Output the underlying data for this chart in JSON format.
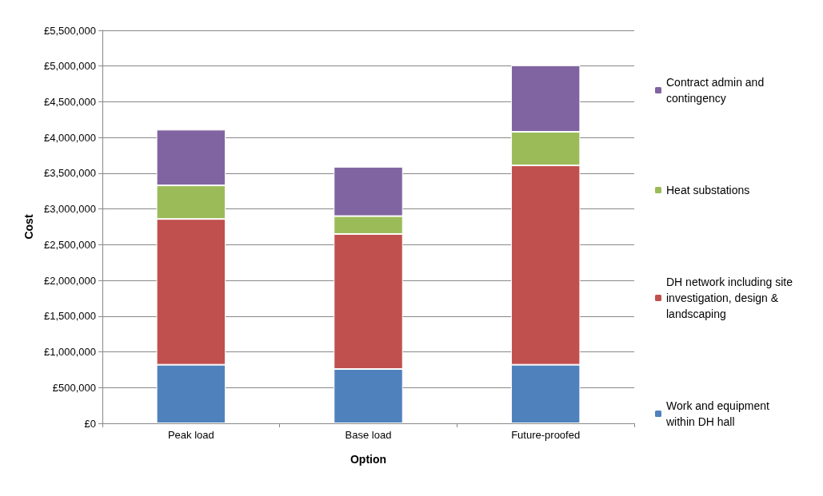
{
  "chart_data": {
    "type": "bar",
    "stacked": true,
    "xlabel": "Option",
    "ylabel": "Cost",
    "categories": [
      "Peak load",
      "Base load",
      "Future-proofed"
    ],
    "series": [
      {
        "name": "Work and equipment within DH hall",
        "color": "#4f81bd",
        "values": [
          820000,
          760000,
          820000
        ]
      },
      {
        "name": "DH network including site investigation, design & landscaping",
        "color": "#c0504d",
        "values": [
          2040000,
          1890000,
          2790000
        ]
      },
      {
        "name": "Heat substations",
        "color": "#9bbb59",
        "values": [
          470000,
          250000,
          470000
        ]
      },
      {
        "name": "Contract admin and contingency",
        "color": "#8064a2",
        "values": [
          780000,
          690000,
          930000
        ]
      }
    ],
    "ylim": [
      0,
      5500000
    ],
    "yticks": [
      {
        "value": 0,
        "label": "£0"
      },
      {
        "value": 500000,
        "label": "£500,000"
      },
      {
        "value": 1000000,
        "label": "£1,000,000"
      },
      {
        "value": 1500000,
        "label": "£1,500,000"
      },
      {
        "value": 2000000,
        "label": "£2,000,000"
      },
      {
        "value": 2500000,
        "label": "£2,500,000"
      },
      {
        "value": 3000000,
        "label": "£3,000,000"
      },
      {
        "value": 3500000,
        "label": "£3,500,000"
      },
      {
        "value": 4000000,
        "label": "£4,000,000"
      },
      {
        "value": 4500000,
        "label": "£4,500,000"
      },
      {
        "value": 5000000,
        "label": "£5,000,000"
      },
      {
        "value": 5500000,
        "label": "£5,500,000"
      }
    ],
    "grid": "y",
    "legend": "right"
  }
}
